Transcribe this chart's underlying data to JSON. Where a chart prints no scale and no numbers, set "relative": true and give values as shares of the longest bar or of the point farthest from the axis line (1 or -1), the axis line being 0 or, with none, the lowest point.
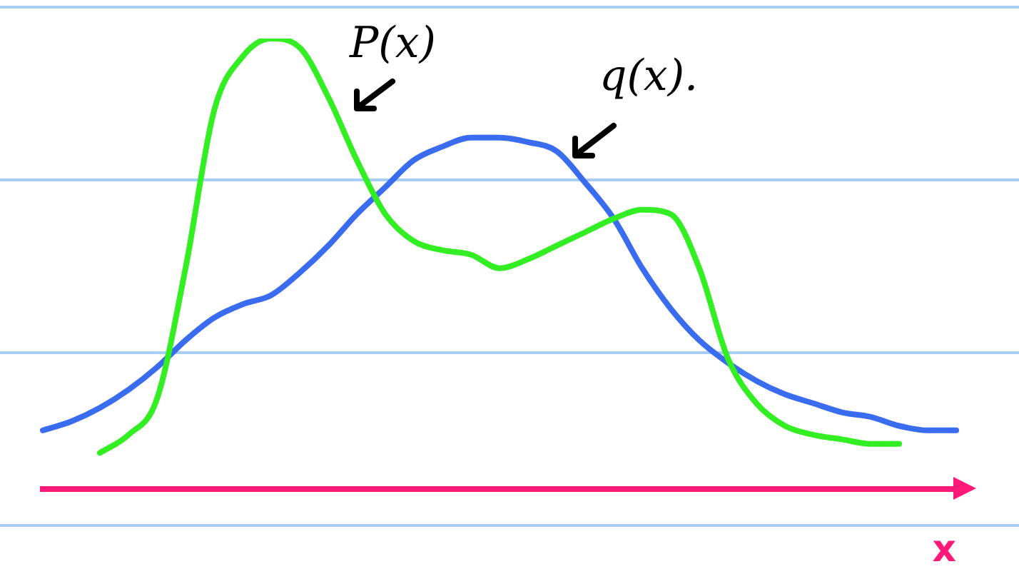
{
  "chart_data": {
    "type": "line",
    "relative": true,
    "xlabel": "x",
    "legend": false,
    "marker": "none",
    "line_style": "solid",
    "categories": [
      null,
      null,
      null,
      null,
      null,
      null,
      null,
      null,
      null,
      null,
      null,
      null,
      null,
      null,
      null,
      null,
      null,
      null,
      null,
      null,
      null,
      null,
      null,
      null,
      null,
      null,
      null,
      null,
      null,
      null,
      null,
      null,
      null
    ],
    "series": [
      {
        "name": "P(x)",
        "color": "#33ee22",
        "values": [
          null,
          null,
          0.08,
          0.12,
          0.2,
          0.49,
          0.84,
          0.96,
          1,
          0.98,
          0.87,
          0.73,
          0.61,
          0.55,
          0.53,
          0.52,
          0.49,
          0.51,
          0.54,
          0.57,
          0.6,
          0.62,
          0.61,
          0.49,
          0.29,
          0.19,
          0.14,
          0.12,
          0.11,
          0.1,
          0.1,
          null,
          null
        ]
      },
      {
        "name": "q(x).",
        "color": "#3a6cf0",
        "values": [
          0.13,
          0.15,
          0.18,
          0.22,
          0.27,
          0.33,
          0.38,
          0.41,
          0.43,
          0.48,
          0.54,
          0.61,
          0.67,
          0.73,
          0.76,
          0.78,
          0.78,
          0.77,
          0.75,
          0.68,
          0.6,
          0.49,
          0.4,
          0.33,
          0.28,
          0.24,
          0.21,
          0.19,
          0.17,
          0.16,
          0.14,
          0.13,
          0.13
        ]
      }
    ]
  }
}
